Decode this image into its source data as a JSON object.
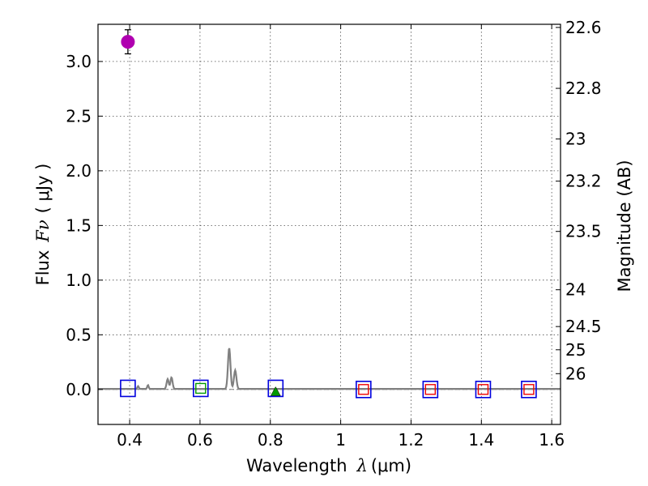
{
  "chart_data": {
    "type": "scatter",
    "xlabel": "Wavelength",
    "xlabel_symbol": "λ",
    "xlabel_unit": "(μm)",
    "ylabel": "Flux",
    "ylabel_symbol": "Fν",
    "ylabel_unit": "( μJy )",
    "y2label": "Magnitude (AB)",
    "xlim": [
      0.31,
      1.625
    ],
    "ylim": [
      -0.32,
      3.34
    ],
    "xticks": [
      0.4,
      0.6,
      0.8,
      1.0,
      1.2,
      1.4,
      1.6
    ],
    "xtick_labels": [
      "0.4",
      "0.6",
      "0.8",
      "1",
      "1.2",
      "1.4",
      "1.6"
    ],
    "yticks": [
      0.0,
      0.5,
      1.0,
      1.5,
      2.0,
      2.5,
      3.0
    ],
    "ytick_labels": [
      "0.0",
      "0.5",
      "1.0",
      "1.5",
      "2.0",
      "2.5",
      "3.0"
    ],
    "mag_ticks": [
      {
        "label": "22.6",
        "mag": 22.6
      },
      {
        "label": "22.8",
        "mag": 22.8
      },
      {
        "label": "23",
        "mag": 23.0
      },
      {
        "label": "23.2",
        "mag": 23.2
      },
      {
        "label": "23.5",
        "mag": 23.5
      },
      {
        "label": "24",
        "mag": 24.0
      },
      {
        "label": "24.5",
        "mag": 24.5
      },
      {
        "label": "25",
        "mag": 25.0
      },
      {
        "label": "26",
        "mag": 26.0
      }
    ],
    "grid": true,
    "measured_point": {
      "x": 0.395,
      "y": 3.18,
      "yerr": 0.11,
      "color": "#b000b0"
    },
    "upper_limit_point": {
      "x": 0.815,
      "y": -0.02,
      "color": "#009900"
    },
    "model_squares": [
      {
        "x": 0.395,
        "y": 0.01
      },
      {
        "x": 0.602,
        "y": 0.01
      },
      {
        "x": 0.815,
        "y": 0.01
      },
      {
        "x": 1.065,
        "y": 0.0
      },
      {
        "x": 1.255,
        "y": 0.0
      },
      {
        "x": 1.405,
        "y": 0.0
      },
      {
        "x": 1.535,
        "y": 0.0
      }
    ],
    "model_square_color": "#0000dd",
    "photometry_marks": [
      {
        "x": 0.602,
        "y": 0.01,
        "color": "#009900"
      },
      {
        "x": 1.065,
        "y": 0.0,
        "color": "#ee0000"
      },
      {
        "x": 1.255,
        "y": 0.0,
        "color": "#ee0000"
      },
      {
        "x": 1.405,
        "y": 0.0,
        "color": "#ee0000"
      },
      {
        "x": 1.535,
        "y": 0.0,
        "color": "#ee0000"
      }
    ],
    "spectrum": {
      "color": "#808080",
      "baseline": 0.005,
      "lines": [
        {
          "x": 0.424,
          "y": 0.025,
          "w": 0.002
        },
        {
          "x": 0.452,
          "y": 0.035,
          "w": 0.002
        },
        {
          "x": 0.508,
          "y": 0.09,
          "w": 0.003
        },
        {
          "x": 0.519,
          "y": 0.105,
          "w": 0.003
        },
        {
          "x": 0.683,
          "y": 0.375,
          "w": 0.0035
        },
        {
          "x": 0.7,
          "y": 0.17,
          "w": 0.0035
        }
      ]
    },
    "zero_line_color": "#808080"
  }
}
